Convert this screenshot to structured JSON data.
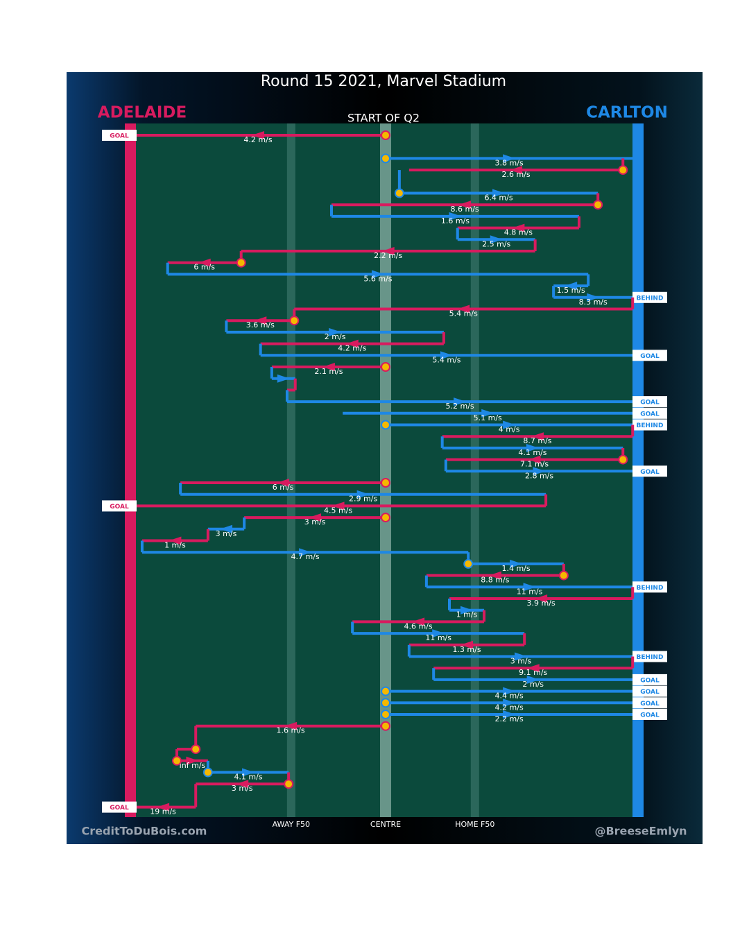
{
  "chart_data": {
    "type": "chain",
    "title": "Round 15 2021, Marvel Stadium",
    "subtitle": "START OF Q2",
    "teams": [
      {
        "name": "ADELAIDE",
        "color": "#d81b5f"
      },
      {
        "name": "CARLTON",
        "color": "#1e88e5"
      }
    ],
    "xlim": [
      0,
      100
    ],
    "xticks": [
      {
        "value": 31.5,
        "label": "AWAY F50"
      },
      {
        "value": 50,
        "label": "CENTRE"
      },
      {
        "value": 67.5,
        "label": "HOME F50"
      }
    ],
    "credit_left": "CreditToDuBois.com",
    "credit_right": "@BreeseEmlyn",
    "rows": [
      {
        "slot": 0,
        "team": 0,
        "from": 50,
        "to": 0,
        "label": "4.2 m/s",
        "end": "GOAL",
        "marker": true
      },
      {
        "slot": 2,
        "team": 1,
        "from": 50,
        "to": 98.4,
        "label": "3.8 m/s",
        "marker": true
      },
      {
        "slot": 3,
        "team": 0,
        "from": 96.5,
        "to": 54.6,
        "label": "2.6 m/s",
        "marker": true
      },
      {
        "slot": 5,
        "team": 1,
        "from": 52.7,
        "to": 91.6,
        "label": "6.4 m/s",
        "marker": true
      },
      {
        "slot": 6,
        "team": 0,
        "from": 91.6,
        "to": 39.4,
        "label": "8.6 m/s",
        "marker": true
      },
      {
        "slot": 7,
        "team": 1,
        "from": 39.4,
        "to": 87.9,
        "label": "1.6 m/s"
      },
      {
        "slot": 8,
        "team": 0,
        "from": 87.9,
        "to": 64.1,
        "label": "4.8 m/s"
      },
      {
        "slot": 9,
        "team": 1,
        "from": 64.1,
        "to": 79.3,
        "label": "2.5 m/s"
      },
      {
        "slot": 10,
        "team": 0,
        "from": 79.3,
        "to": 21.7,
        "label": "2.2 m/s"
      },
      {
        "slot": 11,
        "team": 0,
        "from": 21.7,
        "to": 7.3,
        "label": "6 m/s",
        "marker": true
      },
      {
        "slot": 12,
        "team": 1,
        "from": 7.3,
        "to": 89.7,
        "label": "5.6 m/s"
      },
      {
        "slot": 13,
        "team": 1,
        "from": 89.7,
        "to": 82.9,
        "label": "1.5 m/s"
      },
      {
        "slot": 14,
        "team": 1,
        "from": 82.9,
        "to": 98.4,
        "label": "8.3 m/s",
        "end": "BEHIND"
      },
      {
        "slot": 15,
        "team": 0,
        "from": 98.4,
        "to": 32.1,
        "label": "5.4 m/s"
      },
      {
        "slot": 16,
        "team": 0,
        "from": 32.1,
        "to": 18.8,
        "label": "3.6 m/s",
        "marker": true
      },
      {
        "slot": 17,
        "team": 1,
        "from": 18.8,
        "to": 61.4,
        "label": "2 m/s"
      },
      {
        "slot": 18,
        "team": 0,
        "from": 61.4,
        "to": 25.5,
        "label": "4.2 m/s"
      },
      {
        "slot": 19,
        "team": 1,
        "from": 25.5,
        "to": 98.4,
        "label": "5.4 m/s",
        "end": "GOAL"
      },
      {
        "slot": 20,
        "team": 0,
        "from": 50,
        "to": 27.7,
        "label": "2.1 m/s",
        "marker": true
      },
      {
        "slot": 21,
        "team": 1,
        "from": 27.7,
        "to": 32.3
      },
      {
        "slot": 22,
        "team": 0,
        "from": 32.3,
        "to": 30.7
      },
      {
        "slot": 23,
        "team": 1,
        "from": 30.7,
        "to": 98.4,
        "label": "5.2 m/s",
        "end": "GOAL"
      },
      {
        "slot": 24,
        "team": 1,
        "from": 41.6,
        "to": 98.4,
        "label": "5.1 m/s",
        "end": "GOAL"
      },
      {
        "slot": 25,
        "team": 1,
        "from": 50,
        "to": 98.4,
        "label": "4 m/s",
        "end": "BEHIND",
        "marker": true
      },
      {
        "slot": 26,
        "team": 0,
        "from": 98.4,
        "to": 61.1,
        "label": "8.7 m/s"
      },
      {
        "slot": 27,
        "team": 1,
        "from": 61.1,
        "to": 96.5,
        "label": "4.1 m/s"
      },
      {
        "slot": 28,
        "team": 0,
        "from": 96.5,
        "to": 61.8,
        "label": "7.1 m/s",
        "marker": true
      },
      {
        "slot": 29,
        "team": 1,
        "from": 61.8,
        "to": 98.4,
        "label": "2.8 m/s",
        "end": "GOAL"
      },
      {
        "slot": 30,
        "team": 0,
        "from": 50,
        "to": 9.8,
        "label": "6 m/s",
        "marker": true
      },
      {
        "slot": 31,
        "team": 1,
        "from": 9.8,
        "to": 81.4,
        "label": "2.9 m/s"
      },
      {
        "slot": 32,
        "team": 0,
        "from": 81.4,
        "to": 0,
        "label": "4.5 m/s",
        "end": "GOAL"
      },
      {
        "slot": 33,
        "team": 0,
        "from": 50,
        "to": 22.3,
        "label": "3 m/s",
        "marker": true
      },
      {
        "slot": 34,
        "team": 1,
        "from": 22.3,
        "to": 15.2,
        "label": "3 m/s"
      },
      {
        "slot": 35,
        "team": 0,
        "from": 15.2,
        "to": 2.3,
        "label": "1 m/s"
      },
      {
        "slot": 36,
        "team": 1,
        "from": 2.3,
        "to": 66.2,
        "label": "4.7 m/s"
      },
      {
        "slot": 37,
        "team": 1,
        "from": 66.2,
        "to": 84.9,
        "label": "1.4 m/s",
        "marker": true
      },
      {
        "slot": 38,
        "team": 0,
        "from": 84.9,
        "to": 58,
        "label": "8.8 m/s",
        "marker": true
      },
      {
        "slot": 39,
        "team": 1,
        "from": 58,
        "to": 98.4,
        "label": "11 m/s",
        "end": "BEHIND"
      },
      {
        "slot": 40,
        "team": 0,
        "from": 98.4,
        "to": 62.5,
        "label": "3.9 m/s"
      },
      {
        "slot": 41,
        "team": 1,
        "from": 62.5,
        "to": 69.3,
        "label": "1 m/s"
      },
      {
        "slot": 42,
        "team": 0,
        "from": 69.3,
        "to": 43.5,
        "label": "4.6 m/s"
      },
      {
        "slot": 43,
        "team": 1,
        "from": 43.5,
        "to": 77.2,
        "label": "11 m/s"
      },
      {
        "slot": 44,
        "team": 0,
        "from": 77.2,
        "to": 54.6,
        "label": "1.3 m/s"
      },
      {
        "slot": 45,
        "team": 1,
        "from": 54.6,
        "to": 98.4,
        "label": "3 m/s",
        "end": "BEHIND"
      },
      {
        "slot": 46,
        "team": 0,
        "from": 98.4,
        "to": 59.4,
        "label": "9.1 m/s"
      },
      {
        "slot": 47,
        "team": 1,
        "from": 59.4,
        "to": 98.4,
        "label": "2 m/s",
        "end": "GOAL"
      },
      {
        "slot": 48,
        "team": 1,
        "from": 50,
        "to": 98.4,
        "label": "4.4 m/s",
        "end": "GOAL",
        "marker": true
      },
      {
        "slot": 49,
        "team": 1,
        "from": 50,
        "to": 98.4,
        "label": "4.2 m/s",
        "end": "GOAL",
        "marker": true
      },
      {
        "slot": 50,
        "team": 1,
        "from": 50,
        "to": 98.4,
        "label": "2.2 m/s",
        "end": "GOAL",
        "marker": true
      },
      {
        "slot": 51,
        "team": 0,
        "from": 50,
        "to": 12.8,
        "label": "1.6 m/s",
        "marker": true
      },
      {
        "slot": 53,
        "team": 0,
        "from": 12.8,
        "to": 9.1,
        "marker": true
      },
      {
        "slot": 54,
        "team": 0,
        "from": 9.1,
        "to": 15.2,
        "label": "Inf m/s",
        "marker": true
      },
      {
        "slot": 55,
        "team": 1,
        "from": 15.2,
        "to": 31,
        "label": "4.1 m/s",
        "marker": true
      },
      {
        "slot": 56,
        "team": 0,
        "from": 31,
        "to": 12.8,
        "label": "3 m/s",
        "marker": true
      },
      {
        "slot": 58,
        "team": 0,
        "from": 12.8,
        "to": 0,
        "label": "19 m/s",
        "end": "GOAL"
      }
    ]
  }
}
